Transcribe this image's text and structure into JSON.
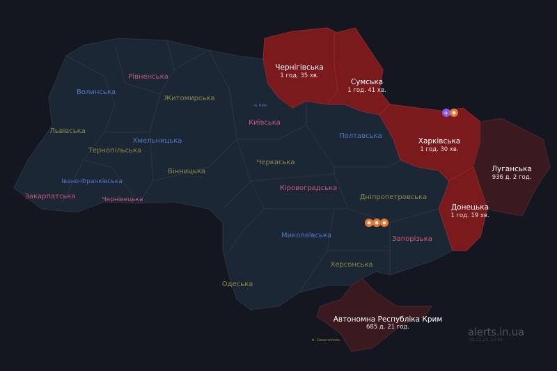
{
  "colors": {
    "background": "#14171f",
    "region_calm": "#1c2736",
    "region_border": "#2b3545",
    "alert_active": "#7a1a1d",
    "alert_long": "#3a1a1e",
    "label_blue": "#4f78c4",
    "label_pink": "#c75a78",
    "label_olive": "#8f8a45"
  },
  "regions": [
    {
      "name": "Волинська",
      "status": "calm"
    },
    {
      "name": "Рівненська",
      "status": "calm"
    },
    {
      "name": "Житомирська",
      "status": "calm"
    },
    {
      "name": "Львівська",
      "status": "calm"
    },
    {
      "name": "Хмельницька",
      "status": "calm"
    },
    {
      "name": "Тернопільська",
      "status": "calm"
    },
    {
      "name": "Київська",
      "status": "calm"
    },
    {
      "name": "м. Київ",
      "status": "calm"
    },
    {
      "name": "Полтавська",
      "status": "calm"
    },
    {
      "name": "Вінницька",
      "status": "calm"
    },
    {
      "name": "Черкаська",
      "status": "calm"
    },
    {
      "name": "Івано-Франківська",
      "status": "calm"
    },
    {
      "name": "Закарпатська",
      "status": "calm"
    },
    {
      "name": "Чернівецька",
      "status": "calm"
    },
    {
      "name": "Кіровоградська",
      "status": "calm"
    },
    {
      "name": "Дніпропетровська",
      "status": "calm"
    },
    {
      "name": "Миколаївська",
      "status": "calm"
    },
    {
      "name": "Запорізька",
      "status": "calm"
    },
    {
      "name": "Херсонська",
      "status": "calm"
    },
    {
      "name": "Одеська",
      "status": "calm"
    },
    {
      "name": "м. Севастополь",
      "status": "calm"
    }
  ],
  "alerts": [
    {
      "name": "Чернігівська",
      "duration": "1 год. 35 хв.",
      "status": "active"
    },
    {
      "name": "Сумська",
      "duration": "1 год. 41 хв.",
      "status": "active"
    },
    {
      "name": "Харківська",
      "duration": "1 год. 30 хв.",
      "status": "active"
    },
    {
      "name": "Луганська",
      "duration": "936 д. 2 год.",
      "status": "long"
    },
    {
      "name": "Донецька",
      "duration": "1 год. 19 хв.",
      "status": "active"
    },
    {
      "name": "Автономна Республіка Крим",
      "duration": "685 д. 21 год.",
      "status": "long"
    }
  ],
  "threat_icons": [
    {
      "location": "Дніпропетровська",
      "icons": [
        "explosion-icon",
        "explosion-icon",
        "explosion-icon"
      ]
    },
    {
      "location": "Харківська",
      "icons": [
        "drone-icon",
        "explosion-icon"
      ]
    }
  ],
  "watermark": {
    "site": "alerts.in.ua",
    "timestamp": "26.11.24, 22:26"
  }
}
